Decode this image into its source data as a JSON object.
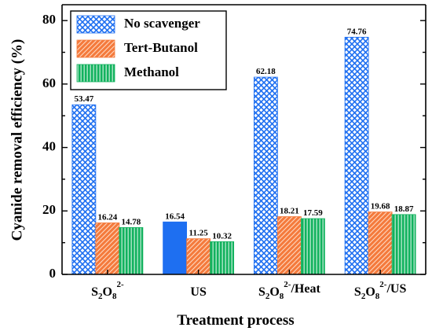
{
  "chart_data": {
    "type": "bar",
    "xlabel": "Treatment process",
    "ylabel": "Cyanide removal efficiency (%)",
    "ylim": [
      0,
      85
    ],
    "yticks": [
      0,
      20,
      40,
      60,
      80
    ],
    "categories": [
      {
        "id": "s2o8",
        "parts": [
          [
            "S",
            ""
          ],
          [
            "2",
            "sub"
          ],
          [
            "O",
            ""
          ],
          [
            "8",
            "sub"
          ],
          [
            "2-",
            "sup"
          ]
        ]
      },
      {
        "id": "us",
        "parts": [
          [
            "US",
            ""
          ]
        ]
      },
      {
        "id": "s2o8-heat",
        "parts": [
          [
            "S",
            ""
          ],
          [
            "2",
            "sub"
          ],
          [
            "O",
            ""
          ],
          [
            "8",
            "sub"
          ],
          [
            "2-",
            "sup"
          ],
          [
            "/Heat",
            ""
          ]
        ]
      },
      {
        "id": "s2o8-us",
        "parts": [
          [
            "S",
            ""
          ],
          [
            "2",
            "sub"
          ],
          [
            "O",
            ""
          ],
          [
            "8",
            "sub"
          ],
          [
            "2-",
            "sup"
          ],
          [
            "/US",
            ""
          ]
        ]
      }
    ],
    "series": [
      {
        "name": "No scavenger",
        "values": [
          53.47,
          16.54,
          62.18,
          74.76
        ],
        "labels": [
          "53.47",
          "16.54",
          "62.18",
          "74.76"
        ],
        "color": "#1e6ff1",
        "pattern": "crosshatch",
        "solid_categories": [
          "us"
        ]
      },
      {
        "name": "Tert-Butanol",
        "values": [
          16.24,
          11.25,
          18.21,
          19.68
        ],
        "labels": [
          "16.24",
          "11.25",
          "18.21",
          "19.68"
        ],
        "color": "#f47a3c",
        "pattern": "diagonal"
      },
      {
        "name": "Methanol",
        "values": [
          14.78,
          10.32,
          17.59,
          18.87
        ],
        "labels": [
          "14.78",
          "10.32",
          "17.59",
          "18.87"
        ],
        "color": "#12b25e",
        "pattern": "vertical"
      }
    ],
    "legend": "top-left",
    "grid": false
  }
}
